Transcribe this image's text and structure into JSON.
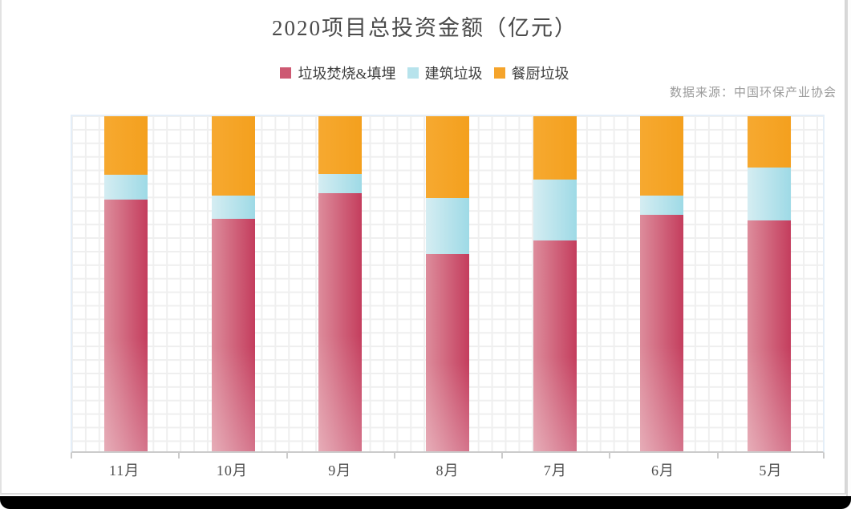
{
  "frame": {
    "bottom_bar_color": "#000000",
    "card_color": "#ffffff"
  },
  "chart": {
    "title": "2020项目总投资金额（亿元）",
    "source": "数据来源：中国环保产业协会",
    "legend": [
      {
        "label": "垃圾焚烧&填埋",
        "color": "#cd5972"
      },
      {
        "label": "建筑垃圾",
        "color": "#b7e3ec"
      },
      {
        "label": "餐厨垃圾",
        "color": "#f5a42b"
      }
    ]
  },
  "chart_data": {
    "type": "bar",
    "stacked": "percent",
    "title": "2020项目总投资金额（亿元）",
    "xlabel": "",
    "ylabel": "",
    "legend_position": "top",
    "grid": true,
    "y_axis_labels_visible": false,
    "value_note": "percent share of column height, estimated from pixels (no value axis shown)",
    "categories": [
      "11月",
      "10月",
      "9月",
      "8月",
      "7月",
      "6月",
      "5月"
    ],
    "series": [
      {
        "name": "垃圾焚烧&填埋",
        "stack_position": "bottom",
        "gradient": {
          "from": "#dd8d9c",
          "to": "#c43d5d"
        },
        "vertical_fade": true,
        "values": [
          75.1,
          69.4,
          77.0,
          58.8,
          62.8,
          70.6,
          69.0
        ]
      },
      {
        "name": "建筑垃圾",
        "stack_position": "middle",
        "gradient": {
          "from": "#d5edf2",
          "to": "#9edae6"
        },
        "vertical_fade": false,
        "values": [
          7.3,
          6.9,
          5.7,
          16.8,
          18.2,
          5.7,
          15.9
        ]
      },
      {
        "name": "餐厨垃圾",
        "stack_position": "top",
        "gradient": {
          "from": "#f6a930",
          "to": "#f4a01e"
        },
        "vertical_fade": false,
        "values": [
          17.5,
          23.7,
          17.3,
          24.4,
          19.0,
          23.7,
          15.2
        ]
      }
    ]
  }
}
